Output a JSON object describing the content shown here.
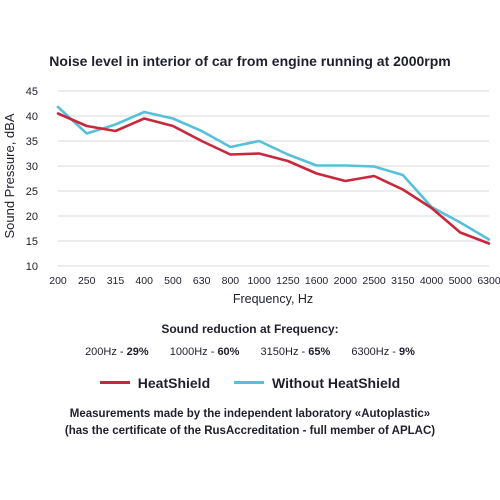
{
  "chart_data": {
    "type": "line",
    "title": "Noise level in interior of car from engine running at 2000rpm",
    "xlabel": "Frequency, Hz",
    "ylabel": "Sound Pressure, dBA",
    "ylim": [
      10,
      45
    ],
    "yticks": [
      "10",
      "15",
      "20",
      "25",
      "30",
      "35",
      "40",
      "45"
    ],
    "categories": [
      "200",
      "250",
      "315",
      "400",
      "500",
      "630",
      "800",
      "1000",
      "1250",
      "1600",
      "2000",
      "2500",
      "3150",
      "4000",
      "5000",
      "6300"
    ],
    "grid": "horizontal",
    "legend_position": "bottom",
    "series": [
      {
        "name": "HeatShield",
        "color": "#c8283c",
        "values": [
          40.5,
          38.0,
          37.0,
          39.5,
          38.0,
          35.0,
          32.3,
          32.5,
          31.0,
          28.5,
          27.0,
          28.0,
          25.3,
          21.6,
          16.7,
          14.5
        ]
      },
      {
        "name": "Without HeatShield",
        "color": "#56c0da",
        "values": [
          41.8,
          36.5,
          38.3,
          40.8,
          39.5,
          37.0,
          33.8,
          35.0,
          32.3,
          30.1,
          30.1,
          29.9,
          28.2,
          21.8,
          18.7,
          15.3
        ]
      }
    ]
  },
  "reduction": {
    "heading": "Sound reduction at Frequency:",
    "items": [
      {
        "label": "200Hz - ",
        "value": "29%"
      },
      {
        "label": "1000Hz - ",
        "value": "60%"
      },
      {
        "label": "3150Hz - ",
        "value": "65%"
      },
      {
        "label": "6300Hz - ",
        "value": "9%"
      }
    ]
  },
  "footnote": {
    "line1": "Measurements made by the independent laboratory «Autoplastic»",
    "line2": "(has the certificate of the RusAccreditation - full member of APLAC)"
  }
}
